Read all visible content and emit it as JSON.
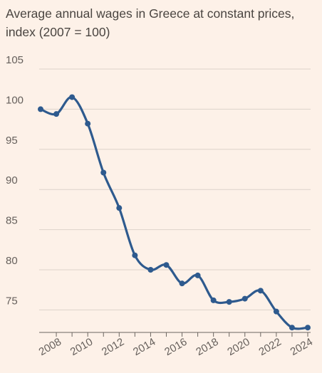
{
  "title_line1": "Average annual wages in Greece at constant prices,",
  "title_line2": "index (2007 = 100)",
  "chart_data": {
    "type": "line",
    "title": "Average annual wages in Greece at constant prices, index (2007 = 100)",
    "xlabel": "",
    "ylabel": "",
    "x": [
      2007,
      2008,
      2009,
      2010,
      2011,
      2012,
      2013,
      2014,
      2015,
      2016,
      2017,
      2018,
      2019,
      2020,
      2021,
      2022,
      2023,
      2024
    ],
    "series": [
      {
        "values": [
          100.0,
          99.4,
          101.5,
          98.2,
          92.1,
          87.7,
          81.8,
          80.0,
          80.6,
          78.3,
          79.3,
          76.2,
          76.0,
          76.4,
          77.4,
          74.8,
          72.8,
          72.8
        ],
        "color": "#2e5a8e"
      }
    ],
    "yticks": [
      75,
      80,
      85,
      90,
      95,
      100,
      105
    ],
    "xticks": [
      "2008",
      "2010",
      "2012",
      "2014",
      "2016",
      "2018",
      "2020",
      "2022",
      "2024"
    ],
    "ylim": [
      72,
      105.5
    ],
    "xlim": [
      2007,
      2024
    ],
    "grid": "horizontal",
    "colors": {
      "background": "#fdf1e8",
      "grid": "#ddd3ca",
      "axis": "#6b6560",
      "line": "#2e5a8e"
    }
  }
}
